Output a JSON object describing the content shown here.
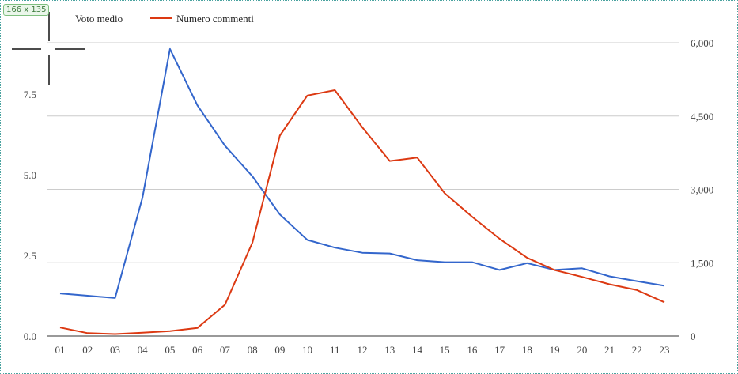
{
  "overlay": {
    "selection_size": "166 x 135"
  },
  "chart_data": {
    "type": "line",
    "categories": [
      "01",
      "02",
      "03",
      "04",
      "05",
      "06",
      "07",
      "08",
      "09",
      "10",
      "11",
      "12",
      "13",
      "14",
      "15",
      "16",
      "17",
      "18",
      "19",
      "20",
      "21",
      "22",
      "23"
    ],
    "series": [
      {
        "name": "Voto medio",
        "axis": "left",
        "color": "#3366cc",
        "values": [
          1.32,
          1.25,
          1.18,
          4.3,
          8.9,
          7.15,
          5.9,
          4.95,
          3.77,
          2.98,
          2.74,
          2.58,
          2.56,
          2.35,
          2.29,
          2.29,
          2.05,
          2.26,
          2.05,
          2.1,
          1.85,
          1.7,
          1.56
        ]
      },
      {
        "name": "Numero commenti",
        "axis": "right",
        "color": "#dc3912",
        "values": [
          175,
          60,
          40,
          70,
          100,
          165,
          640,
          1910,
          4100,
          4920,
          5030,
          4270,
          3580,
          3650,
          2920,
          2440,
          1990,
          1600,
          1350,
          1210,
          1060,
          940,
          690
        ]
      }
    ],
    "y_left": {
      "ticks": [
        "0.0",
        "2.5",
        "5.0",
        "7.5"
      ],
      "tick_values": [
        0,
        2.5,
        5.0,
        7.5
      ],
      "range": [
        0,
        10
      ]
    },
    "y_right": {
      "ticks": [
        "0",
        "1,500",
        "3,000",
        "4,500",
        "6,000"
      ],
      "tick_values": [
        0,
        1500,
        3000,
        4500,
        6000
      ],
      "range": [
        0,
        6000
      ]
    },
    "grid": true,
    "legend_position": "top-left"
  }
}
